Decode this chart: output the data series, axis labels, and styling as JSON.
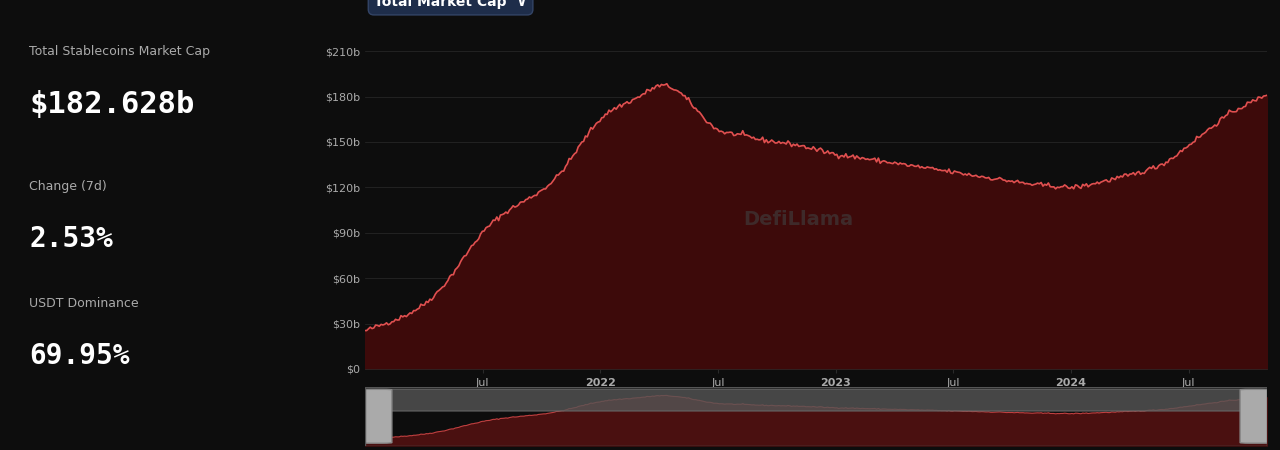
{
  "bg_color": "#0d0d0d",
  "left_panel_bg": "#0d0d0d",
  "chart_bg": "#0d0d0d",
  "title_label": "Total Stablecoins Market Cap",
  "title_value": "$182.628b",
  "change_label": "Change (7d)",
  "change_value": "2.53%",
  "dominance_label": "USDT Dominance",
  "dominance_value": "69.95%",
  "chart_title": "Total Market Cap",
  "chart_title_bg": "#1a2035",
  "line_color": "#e05050",
  "fill_color_main": "#3d0a0a",
  "fill_color_mini": "#4a1010",
  "yticks": [
    0,
    30,
    60,
    90,
    120,
    150,
    180,
    210
  ],
  "ytick_labels": [
    "$0",
    "$30b",
    "$60b",
    "$90b",
    "$120b",
    "$150b",
    "$180b",
    "$210b"
  ],
  "ylim": [
    0,
    220
  ],
  "grid_color": "#2a2a2a",
  "tick_color": "#888888",
  "label_color": "#aaaaaa",
  "watermark_text": "DefiLlama",
  "watermark_color": "#404040"
}
